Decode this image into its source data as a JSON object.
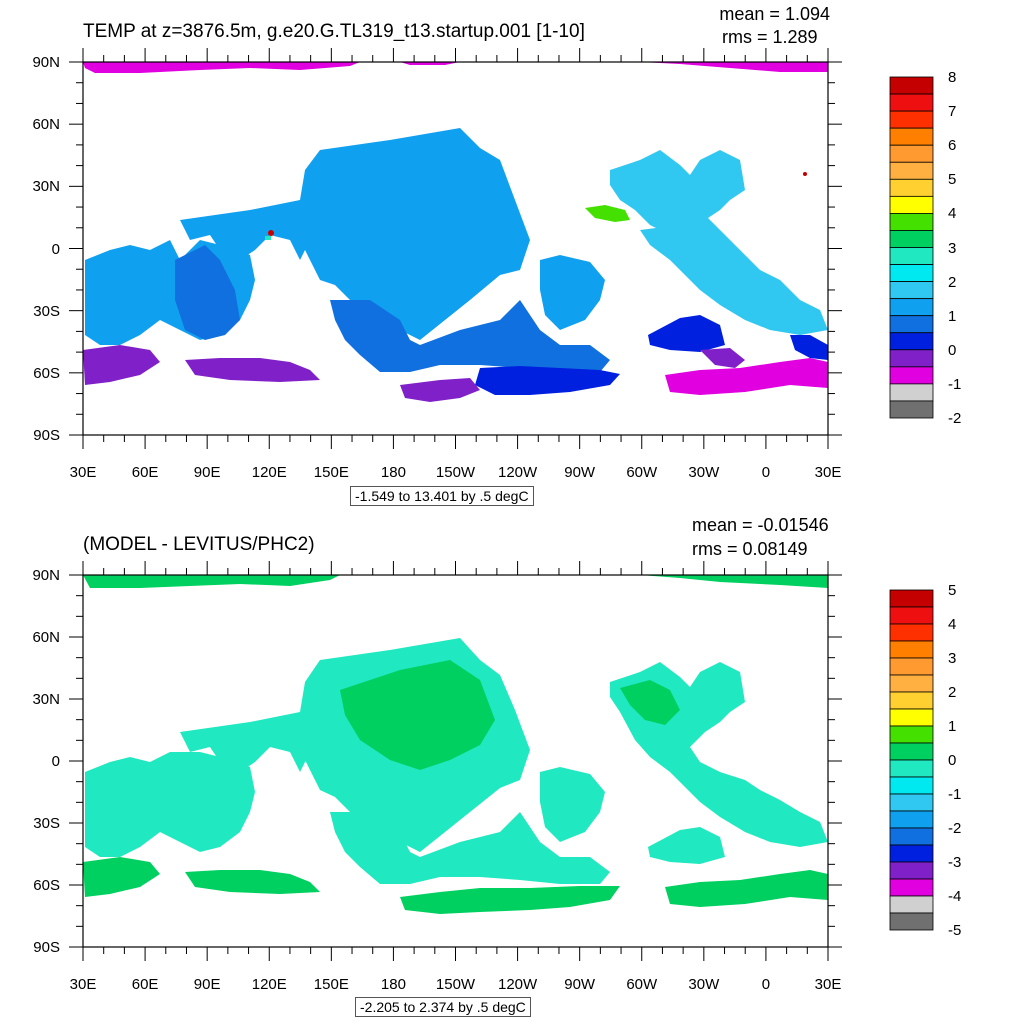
{
  "panels": [
    {
      "title": "TEMP at z=3876.5m, g.e20.G.TL319_t13.startup.001 [1-10]",
      "mean_text": "mean = 1.094",
      "rms_text": "rms = 1.289",
      "range_text": "-1.549 to 13.401 by .5 degC",
      "lat_labels": [
        "90N",
        "60N",
        "30N",
        "0",
        "30S",
        "60S",
        "90S"
      ],
      "lon_labels": [
        "30E",
        "60E",
        "90E",
        "120E",
        "150E",
        "180",
        "150W",
        "120W",
        "90W",
        "60W",
        "30W",
        "0",
        "30E"
      ],
      "colorbar_labels": [
        "8",
        "7",
        "6",
        "5",
        "4",
        "3",
        "2",
        "1",
        "0",
        "-1",
        "-2"
      ],
      "colorbar_colors": [
        "#c40000",
        "#ee1010",
        "#ff3000",
        "#ff7f00",
        "#ff9a30",
        "#ffb040",
        "#ffd030",
        "#ffff00",
        "#44e000",
        "#00d060",
        "#20e8c0",
        "#00e8f0",
        "#30c8f0",
        "#10a0f0",
        "#1070e0",
        "#0020e0",
        "#8020c8",
        "#e000e0",
        "#d0d0d0",
        "#707070"
      ]
    },
    {
      "title": "(MODEL - LEVITUS/PHC2)",
      "mean_text": "mean = -0.01546",
      "rms_text": "rms = 0.08149",
      "range_text": "-2.205 to 2.374 by .5 degC",
      "lat_labels": [
        "90N",
        "60N",
        "30N",
        "0",
        "30S",
        "60S",
        "90S"
      ],
      "lon_labels": [
        "30E",
        "60E",
        "90E",
        "120E",
        "150E",
        "180",
        "150W",
        "120W",
        "90W",
        "60W",
        "30W",
        "0",
        "30E"
      ],
      "colorbar_labels": [
        "5",
        "4",
        "3",
        "2",
        "1",
        "0",
        "-1",
        "-2",
        "-3",
        "-4",
        "-5"
      ],
      "colorbar_colors": [
        "#c40000",
        "#ee1010",
        "#ff3000",
        "#ff7f00",
        "#ff9a30",
        "#ffb040",
        "#ffd030",
        "#ffff00",
        "#44e000",
        "#00d060",
        "#20e8c0",
        "#00e8f0",
        "#30c8f0",
        "#10a0f0",
        "#1070e0",
        "#0020e0",
        "#8020c8",
        "#e000e0",
        "#d0d0d0",
        "#707070"
      ]
    }
  ]
}
